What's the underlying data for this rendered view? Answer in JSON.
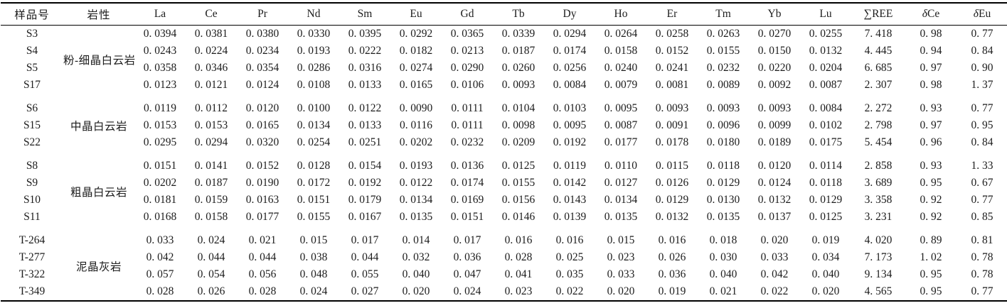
{
  "table": {
    "columns": [
      "样品号",
      "岩性",
      "La",
      "Ce",
      "Pr",
      "Nd",
      "Sm",
      "Eu",
      "Gd",
      "Tb",
      "Dy",
      "Ho",
      "Er",
      "Tm",
      "Yb",
      "Lu",
      "∑REE",
      "δCe",
      "δEu"
    ],
    "groups": [
      {
        "lithology": "粉-细晶白云岩",
        "rows": [
          {
            "sample": "S3",
            "values": [
              "0. 0394",
              "0. 0381",
              "0. 0380",
              "0. 0330",
              "0. 0395",
              "0. 0292",
              "0. 0365",
              "0. 0339",
              "0. 0294",
              "0. 0264",
              "0. 0258",
              "0. 0263",
              "0. 0270",
              "0. 0255",
              "7. 418",
              "0. 98",
              "0. 77"
            ]
          },
          {
            "sample": "S4",
            "values": [
              "0. 0243",
              "0. 0224",
              "0. 0234",
              "0. 0193",
              "0. 0222",
              "0. 0182",
              "0. 0213",
              "0. 0187",
              "0. 0174",
              "0. 0158",
              "0. 0152",
              "0. 0155",
              "0. 0150",
              "0. 0132",
              "4. 445",
              "0. 94",
              "0. 84"
            ]
          },
          {
            "sample": "S5",
            "values": [
              "0. 0358",
              "0. 0346",
              "0. 0354",
              "0. 0286",
              "0. 0316",
              "0. 0274",
              "0. 0290",
              "0. 0260",
              "0. 0256",
              "0. 0240",
              "0. 0241",
              "0. 0232",
              "0. 0220",
              "0. 0204",
              "6. 685",
              "0. 97",
              "0. 90"
            ]
          },
          {
            "sample": "S17",
            "values": [
              "0. 0123",
              "0. 0121",
              "0. 0124",
              "0. 0108",
              "0. 0133",
              "0. 0165",
              "0. 0106",
              "0. 0093",
              "0. 0084",
              "0. 0079",
              "0. 0081",
              "0. 0089",
              "0. 0092",
              "0. 0087",
              "2. 307",
              "0. 98",
              "1. 37"
            ]
          }
        ]
      },
      {
        "lithology": "中晶白云岩",
        "rows": [
          {
            "sample": "S6",
            "values": [
              "0. 0119",
              "0. 0112",
              "0. 0120",
              "0. 0100",
              "0. 0122",
              "0. 0090",
              "0. 0111",
              "0. 0104",
              "0. 0103",
              "0. 0095",
              "0. 0093",
              "0. 0093",
              "0. 0093",
              "0. 0084",
              "2. 272",
              "0. 93",
              "0. 77"
            ]
          },
          {
            "sample": "S15",
            "values": [
              "0. 0153",
              "0. 0153",
              "0. 0165",
              "0. 0134",
              "0. 0133",
              "0. 0116",
              "0. 0111",
              "0. 0098",
              "0. 0095",
              "0. 0087",
              "0. 0091",
              "0. 0096",
              "0. 0099",
              "0. 0102",
              "2. 798",
              "0. 97",
              "0. 95"
            ]
          },
          {
            "sample": "S22",
            "values": [
              "0. 0295",
              "0. 0294",
              "0. 0320",
              "0. 0254",
              "0. 0251",
              "0. 0202",
              "0. 0232",
              "0. 0209",
              "0. 0192",
              "0. 0177",
              "0. 0178",
              "0. 0180",
              "0. 0189",
              "0. 0175",
              "5. 454",
              "0. 96",
              "0. 84"
            ]
          }
        ]
      },
      {
        "lithology": "粗晶白云岩",
        "rows": [
          {
            "sample": "S8",
            "values": [
              "0. 0151",
              "0. 0141",
              "0. 0152",
              "0. 0128",
              "0. 0154",
              "0. 0193",
              "0. 0136",
              "0. 0125",
              "0. 0119",
              "0. 0110",
              "0. 0115",
              "0. 0118",
              "0. 0120",
              "0. 0114",
              "2. 858",
              "0. 93",
              "1. 33"
            ]
          },
          {
            "sample": "S9",
            "values": [
              "0. 0202",
              "0. 0187",
              "0. 0190",
              "0. 0172",
              "0. 0192",
              "0. 0122",
              "0. 0174",
              "0. 0155",
              "0. 0142",
              "0. 0127",
              "0. 0126",
              "0. 0129",
              "0. 0124",
              "0. 0118",
              "3. 689",
              "0. 95",
              "0. 67"
            ]
          },
          {
            "sample": "S10",
            "values": [
              "0. 0181",
              "0. 0159",
              "0. 0163",
              "0. 0151",
              "0. 0179",
              "0. 0134",
              "0. 0169",
              "0. 0156",
              "0. 0143",
              "0. 0134",
              "0. 0129",
              "0. 0130",
              "0. 0132",
              "0. 0129",
              "3. 358",
              "0. 92",
              "0. 77"
            ]
          },
          {
            "sample": "S11",
            "values": [
              "0. 0168",
              "0. 0158",
              "0. 0177",
              "0. 0155",
              "0. 0167",
              "0. 0135",
              "0. 0151",
              "0. 0146",
              "0. 0139",
              "0. 0135",
              "0. 0132",
              "0. 0135",
              "0. 0137",
              "0. 0125",
              "3. 231",
              "0. 92",
              "0. 85"
            ]
          }
        ]
      },
      {
        "lithology": "泥晶灰岩",
        "rows": [
          {
            "sample": "T-264",
            "values": [
              "0. 033",
              "0. 024",
              "0. 021",
              "0. 015",
              "0. 017",
              "0. 014",
              "0. 017",
              "0. 016",
              "0. 016",
              "0. 015",
              "0. 016",
              "0. 018",
              "0. 020",
              "0. 019",
              "4. 020",
              "0. 89",
              "0. 81"
            ]
          },
          {
            "sample": "T-277",
            "values": [
              "0. 042",
              "0. 044",
              "0. 044",
              "0. 038",
              "0. 044",
              "0. 032",
              "0. 036",
              "0. 028",
              "0. 025",
              "0. 023",
              "0. 026",
              "0. 030",
              "0. 033",
              "0. 034",
              "7. 173",
              "1. 02",
              "0. 78"
            ]
          },
          {
            "sample": "T-322",
            "values": [
              "0. 057",
              "0. 054",
              "0. 056",
              "0. 048",
              "0. 055",
              "0. 040",
              "0. 047",
              "0. 041",
              "0. 035",
              "0. 033",
              "0. 036",
              "0. 040",
              "0. 042",
              "0. 040",
              "9. 134",
              "0. 95",
              "0. 78"
            ]
          },
          {
            "sample": "T-349",
            "values": [
              "0. 028",
              "0. 026",
              "0. 028",
              "0. 024",
              "0. 027",
              "0. 020",
              "0. 024",
              "0. 023",
              "0. 022",
              "0. 020",
              "0. 019",
              "0. 021",
              "0. 022",
              "0. 020",
              "4. 565",
              "0. 95",
              "0. 77"
            ]
          }
        ]
      }
    ],
    "colors": {
      "text": "#1c1c1c",
      "rule": "#000000",
      "background": "#ffffff"
    }
  }
}
